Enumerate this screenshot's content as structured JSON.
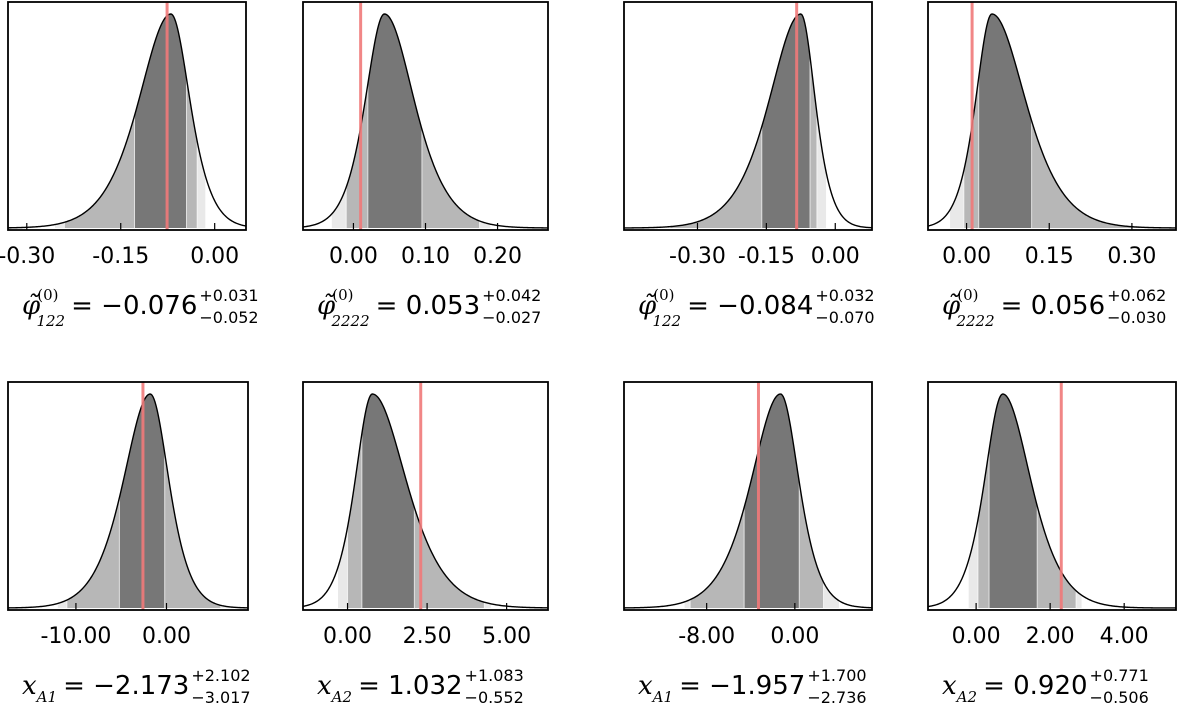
{
  "chart_data": [
    {
      "type": "area",
      "variable": "phi_122",
      "xlim": [
        -0.33,
        0.05
      ],
      "ticks": [
        -0.3,
        -0.15,
        0.0
      ],
      "tick_labels": [
        "-0.30",
        "-0.15",
        "0.00"
      ],
      "peak": -0.07,
      "sigma_left": 0.052,
      "sigma_right": 0.031,
      "truth": -0.076,
      "bands": {
        "dark": [
          -0.128,
          -0.045
        ],
        "mid": [
          -0.24,
          -0.028
        ],
        "light": [
          -0.255,
          -0.015
        ]
      },
      "caption": {
        "symbol": "φ̃",
        "sup": "(0)",
        "sub": "122",
        "eq": "= −0.076",
        "err_plus": "+0.031",
        "err_minus": "−0.052"
      }
    },
    {
      "type": "area",
      "variable": "phi_2222",
      "xlim": [
        -0.07,
        0.27
      ],
      "ticks": [
        0.0,
        0.1,
        0.2
      ],
      "tick_labels": [
        "0.00",
        "0.10",
        "0.20"
      ],
      "peak": 0.043,
      "sigma_left": 0.027,
      "sigma_right": 0.042,
      "truth": 0.01,
      "bands": {
        "dark": [
          0.02,
          0.095
        ],
        "mid": [
          -0.01,
          0.175
        ],
        "light": [
          -0.03,
          0.19
        ]
      },
      "caption": {
        "symbol": "φ̃",
        "sup": "(0)",
        "sub": "2222",
        "eq": "= 0.053",
        "err_plus": "+0.042",
        "err_minus": "−0.027"
      }
    },
    {
      "type": "area",
      "variable": "phi_122_b",
      "xlim": [
        -0.46,
        0.08
      ],
      "ticks": [
        -0.3,
        -0.15,
        0.0
      ],
      "tick_labels": [
        "-0.30",
        "-0.15",
        "0.00"
      ],
      "peak": -0.075,
      "sigma_left": 0.07,
      "sigma_right": 0.032,
      "truth": -0.084,
      "bands": {
        "dark": [
          -0.16,
          -0.055
        ],
        "mid": [
          -0.36,
          -0.04
        ],
        "light": [
          -0.4,
          -0.02
        ]
      },
      "caption": {
        "symbol": "φ̃",
        "sup": "(0)",
        "sub": "122",
        "eq": "= −0.084",
        "err_plus": "+0.032",
        "err_minus": "−0.070"
      }
    },
    {
      "type": "area",
      "variable": "phi_2222_b",
      "xlim": [
        -0.07,
        0.38
      ],
      "ticks": [
        0.0,
        0.15,
        0.3
      ],
      "tick_labels": [
        "0.00",
        "0.15",
        "0.30"
      ],
      "peak": 0.046,
      "sigma_left": 0.03,
      "sigma_right": 0.062,
      "truth": 0.01,
      "bands": {
        "dark": [
          0.022,
          0.118
        ],
        "mid": [
          -0.005,
          0.32
        ],
        "light": [
          -0.03,
          0.33
        ]
      },
      "caption": {
        "symbol": "φ̃",
        "sup": "(0)",
        "sub": "2222",
        "eq": "= 0.056",
        "err_plus": "+0.062",
        "err_minus": "−0.030"
      }
    },
    {
      "type": "area",
      "variable": "x_A1",
      "xlim": [
        -17.5,
        9.0
      ],
      "ticks": [
        -10.0,
        0.0
      ],
      "tick_labels": [
        "-10.00",
        "0.00"
      ],
      "peak": -1.8,
      "sigma_left": 3.0,
      "sigma_right": 2.1,
      "truth": -2.6,
      "bands": {
        "dark": [
          -5.2,
          -0.2
        ],
        "mid": [
          -11.0,
          6.0
        ],
        "light": [
          -12.0,
          7.0
        ]
      },
      "caption": {
        "symbol": "x",
        "sup": "",
        "sub": "A1",
        "eq": "= −2.173",
        "err_plus": "+2.102",
        "err_minus": "−3.017"
      }
    },
    {
      "type": "area",
      "variable": "x_A2",
      "xlim": [
        -1.4,
        6.3
      ],
      "ticks": [
        0.0,
        2.5,
        5.0
      ],
      "tick_labels": [
        "0.00",
        "2.50",
        "5.00"
      ],
      "peak": 0.78,
      "sigma_left": 0.55,
      "sigma_right": 1.08,
      "truth": 2.3,
      "bands": {
        "dark": [
          0.45,
          2.1
        ],
        "mid": [
          0.0,
          4.3
        ],
        "light": [
          -0.3,
          4.5
        ]
      },
      "caption": {
        "symbol": "x",
        "sup": "",
        "sub": "A2",
        "eq": "= 1.032",
        "err_plus": "+1.083",
        "err_minus": "−0.552"
      }
    },
    {
      "type": "area",
      "variable": "x_A1_b",
      "xlim": [
        -15.5,
        7.0
      ],
      "ticks": [
        -8.0,
        0.0
      ],
      "tick_labels": [
        "-8.00",
        "0.00"
      ],
      "peak": -1.3,
      "sigma_left": 2.7,
      "sigma_right": 1.7,
      "truth": -3.3,
      "bands": {
        "dark": [
          -4.6,
          0.4
        ],
        "mid": [
          -9.5,
          2.6
        ],
        "light": [
          -10.0,
          4.0
        ]
      },
      "caption": {
        "symbol": "x",
        "sup": "",
        "sub": "A1",
        "eq": "= −1.957",
        "err_plus": "+1.700",
        "err_minus": "−2.736"
      }
    },
    {
      "type": "area",
      "variable": "x_A2_b",
      "xlim": [
        -1.3,
        5.4
      ],
      "ticks": [
        0.0,
        2.0,
        4.0
      ],
      "tick_labels": [
        "0.00",
        "2.00",
        "4.00"
      ],
      "peak": 0.72,
      "sigma_left": 0.5,
      "sigma_right": 0.77,
      "truth": 2.3,
      "bands": {
        "dark": [
          0.35,
          1.65
        ],
        "mid": [
          0.05,
          2.7
        ],
        "light": [
          -0.2,
          2.85
        ]
      },
      "caption": {
        "symbol": "x",
        "sup": "",
        "sub": "A2",
        "eq": "= 0.920",
        "err_plus": "+0.771",
        "err_minus": "−0.506"
      }
    }
  ]
}
